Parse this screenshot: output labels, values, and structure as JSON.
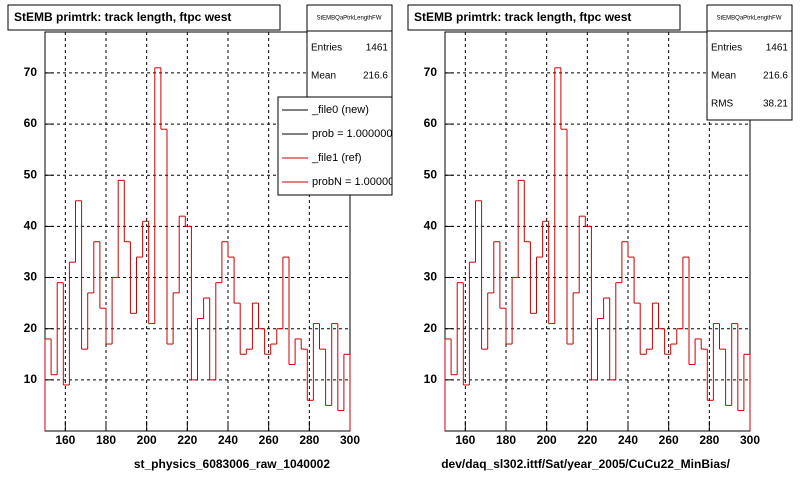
{
  "chart_data": [
    {
      "type": "histogram",
      "title": "StEMB primtrk: track length, ftpc west",
      "xlabel": "st_physics_6083006_raw_1040002",
      "bins": [
        150,
        153,
        156,
        159,
        162,
        165,
        168,
        171,
        174,
        177,
        180,
        183,
        186,
        189,
        192,
        195,
        198,
        201,
        204,
        207,
        210,
        213,
        216,
        219,
        222,
        225,
        228,
        231,
        234,
        237,
        240,
        243,
        246,
        249,
        252,
        255,
        258,
        261,
        264,
        267,
        270,
        273,
        276,
        279,
        282,
        285,
        288,
        291,
        294,
        297,
        300
      ],
      "values": [
        18,
        11,
        29,
        9,
        33,
        45,
        16,
        27,
        37,
        24,
        17,
        30,
        49,
        37,
        23,
        34,
        41,
        21,
        71,
        59,
        17,
        27,
        42,
        40,
        10,
        22,
        26,
        10,
        29,
        37,
        34,
        25,
        15,
        16,
        25,
        20,
        15,
        17,
        20,
        34,
        13,
        18,
        16,
        6,
        21,
        16,
        5,
        21,
        4,
        15
      ],
      "color": "#cc0000",
      "xlim": [
        150,
        300
      ],
      "ylim": [
        0,
        78
      ],
      "xticks": [
        160,
        180,
        200,
        220,
        240,
        260,
        280,
        300
      ],
      "yticks": [
        10,
        20,
        30,
        40,
        50,
        60,
        70
      ],
      "grid": true,
      "stats": {
        "title": "StEMBQaPtrkLengthFW",
        "rows": [
          {
            "label": "Entries",
            "value": 1461
          },
          {
            "label": "Mean",
            "value": 216.6
          }
        ]
      },
      "legend": [
        {
          "label": "_file0 (new)",
          "color": "#000000"
        },
        {
          "label": "prob = 1.000000",
          "color": "#000000"
        },
        {
          "label": "_file1 (ref)",
          "color": "#cc0000"
        },
        {
          "label": "probN = 1.000000",
          "color": "#cc0000"
        }
      ]
    },
    {
      "type": "histogram",
      "title": "StEMB primtrk: track length, ftpc west",
      "xlabel": "dev/daq_sl302.ittf/Sat/year_2005/CuCu22_MinBias/",
      "bins": [
        150,
        153,
        156,
        159,
        162,
        165,
        168,
        171,
        174,
        177,
        180,
        183,
        186,
        189,
        192,
        195,
        198,
        201,
        204,
        207,
        210,
        213,
        216,
        219,
        222,
        225,
        228,
        231,
        234,
        237,
        240,
        243,
        246,
        249,
        252,
        255,
        258,
        261,
        264,
        267,
        270,
        273,
        276,
        279,
        282,
        285,
        288,
        291,
        294,
        297,
        300
      ],
      "values": [
        18,
        11,
        29,
        9,
        33,
        45,
        16,
        27,
        37,
        24,
        17,
        30,
        49,
        37,
        23,
        34,
        41,
        21,
        71,
        59,
        17,
        27,
        42,
        40,
        10,
        22,
        26,
        10,
        29,
        37,
        34,
        25,
        15,
        16,
        25,
        20,
        15,
        17,
        20,
        34,
        13,
        18,
        16,
        6,
        21,
        16,
        5,
        21,
        4,
        15
      ],
      "color": "#cc0000",
      "xlim": [
        150,
        300
      ],
      "ylim": [
        0,
        78
      ],
      "xticks": [
        160,
        180,
        200,
        220,
        240,
        260,
        280,
        300
      ],
      "yticks": [
        10,
        20,
        30,
        40,
        50,
        60,
        70
      ],
      "grid": true,
      "stats": {
        "title": "StEMBQaPtrkLengthFW",
        "rows": [
          {
            "label": "Entries",
            "value": 1461
          },
          {
            "label": "Mean",
            "value": 216.6
          },
          {
            "label": "RMS",
            "value": 38.21
          }
        ]
      }
    }
  ]
}
